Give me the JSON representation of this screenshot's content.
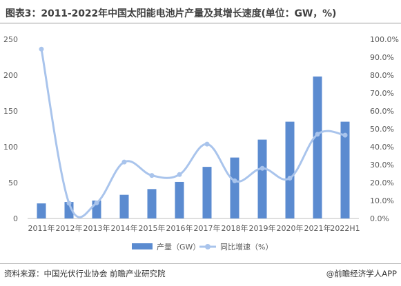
{
  "title": "图表3：2011-2022年中国太阳能电池片产量及其增长速度(单位：GW，%)",
  "source": "资料来源：中国光伏行业协会 前瞻产业研究院",
  "brand": "@前瞻经济学人APP",
  "colors": {
    "bar": "#5b8bd0",
    "line": "#a9c4ec",
    "axis": "#bfbfbf",
    "text": "#595959"
  },
  "chart_data": {
    "type": "bar",
    "categories": [
      "2011年",
      "2012年",
      "2013年",
      "2014年",
      "2015年",
      "2016年",
      "2017年",
      "2018年",
      "2019年",
      "2020年",
      "2021年",
      "2022H1"
    ],
    "series": [
      {
        "name": "产量（GW）",
        "type": "bar",
        "axis": "left",
        "values": [
          21,
          23,
          25,
          33,
          41,
          51,
          72,
          85,
          110,
          135,
          198,
          135
        ]
      },
      {
        "name": "同比增速（%）",
        "type": "line",
        "axis": "right",
        "values": [
          94.5,
          8.5,
          8.7,
          31.5,
          24.0,
          24.5,
          41.5,
          21.0,
          28.0,
          22.5,
          47.0,
          46.5
        ]
      }
    ],
    "y_left": {
      "ylim": [
        0,
        250
      ],
      "ticks": [
        "0",
        "50",
        "100",
        "150",
        "200",
        "250"
      ]
    },
    "y_right": {
      "ylim": [
        0,
        100
      ],
      "ticks": [
        "0.0%",
        "10.0%",
        "20.0%",
        "30.0%",
        "40.0%",
        "50.0%",
        "60.0%",
        "70.0%",
        "80.0%",
        "90.0%",
        "100.0%"
      ]
    },
    "grid": false,
    "legend_position": "bottom"
  }
}
